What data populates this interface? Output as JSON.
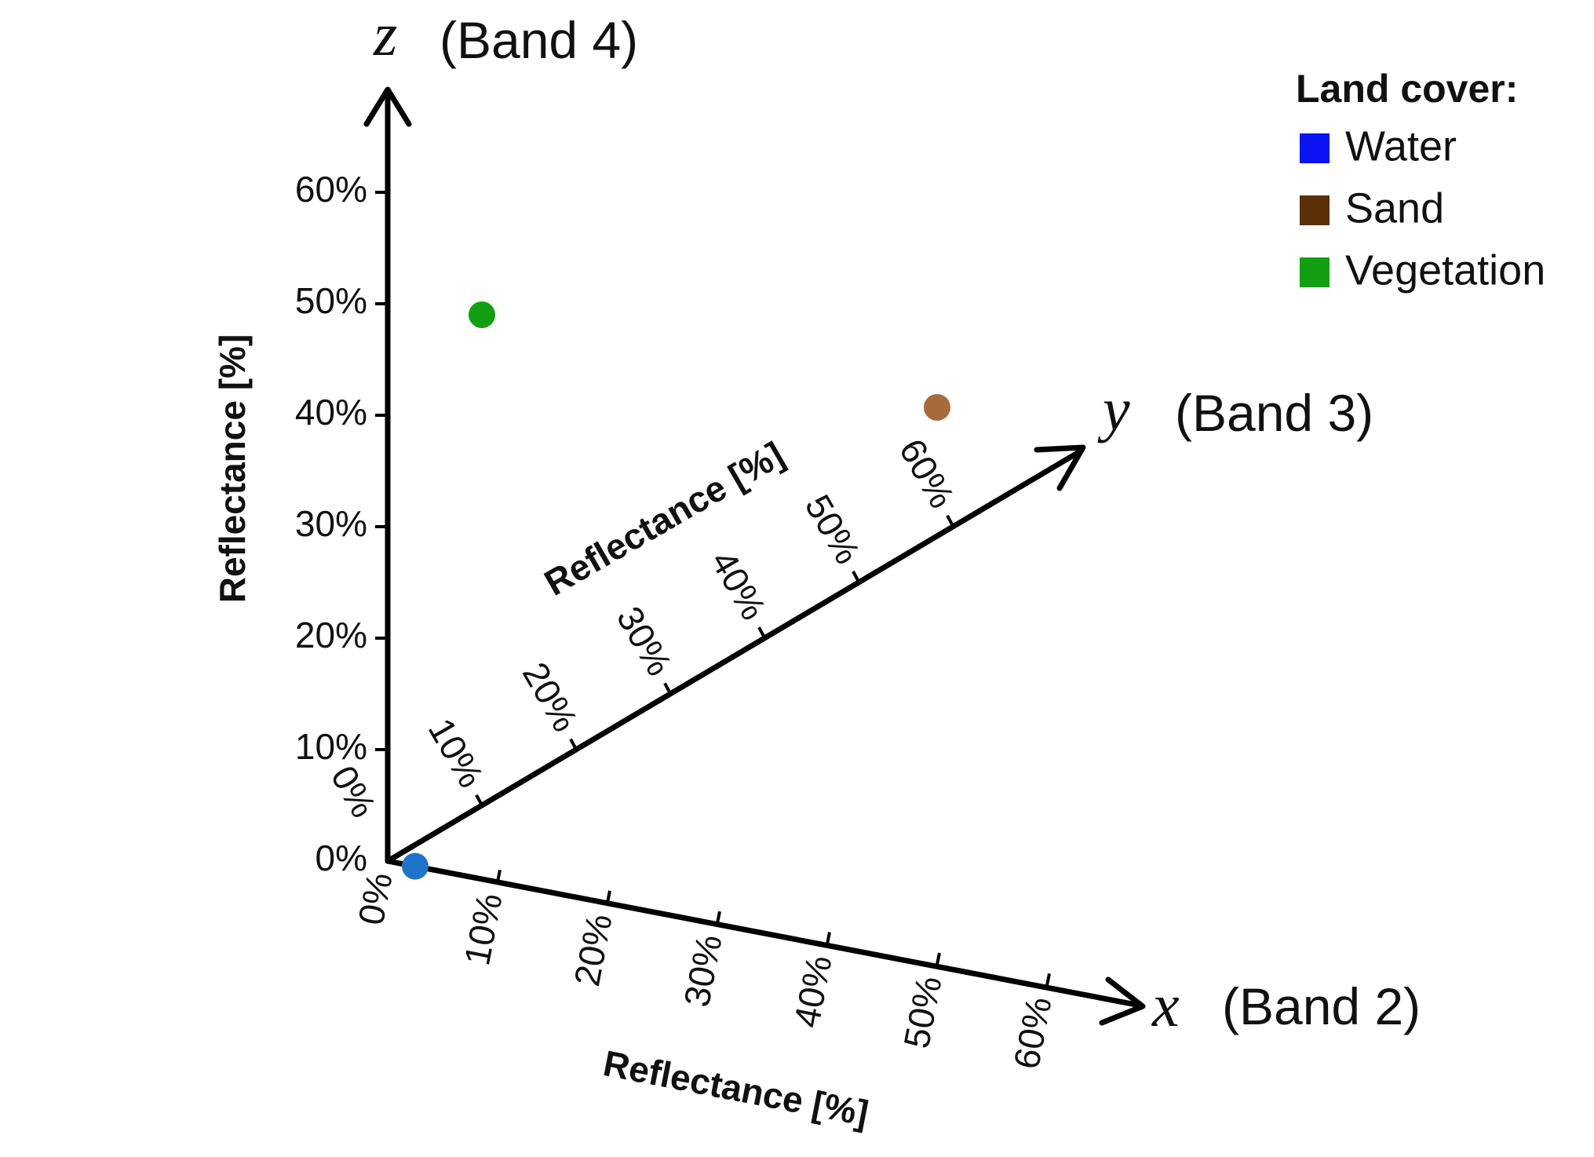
{
  "chart_data": {
    "type": "scatter",
    "projection": "3d-oblique",
    "axes": {
      "x": {
        "var": "x",
        "band": "(Band 2)",
        "title": "Reflectance [%]",
        "ticks": [
          "0%",
          "10%",
          "20%",
          "30%",
          "40%",
          "50%",
          "60%"
        ],
        "range": [
          0,
          60
        ]
      },
      "y": {
        "var": "y",
        "band": "(Band 3)",
        "title": "Reflectance [%]",
        "ticks": [
          "0%",
          "10%",
          "20%",
          "30%",
          "40%",
          "50%",
          "60%"
        ],
        "range": [
          0,
          60
        ]
      },
      "z": {
        "var": "z",
        "band": "(Band 4)",
        "title": "Reflectance [%]",
        "ticks": [
          "0%",
          "10%",
          "20%",
          "30%",
          "40%",
          "50%",
          "60%"
        ],
        "range": [
          0,
          60
        ]
      }
    },
    "legend": {
      "title": "Land cover:",
      "position": "top-right",
      "items": [
        {
          "label": "Water",
          "color": "#0a14f0"
        },
        {
          "label": "Sand",
          "color": "#5c3008"
        },
        {
          "label": "Vegetation",
          "color": "#12a012"
        }
      ]
    },
    "points": [
      {
        "class": "Water",
        "x": 2.5,
        "y": 0,
        "z": 0,
        "color": "#1e74c8"
      },
      {
        "class": "Vegetation",
        "x": 0,
        "y": 10,
        "z": 44,
        "color": "#12a012"
      },
      {
        "class": "Sand",
        "x": 50,
        "y": 0,
        "z": 50,
        "color": "#a86a3a"
      }
    ]
  }
}
